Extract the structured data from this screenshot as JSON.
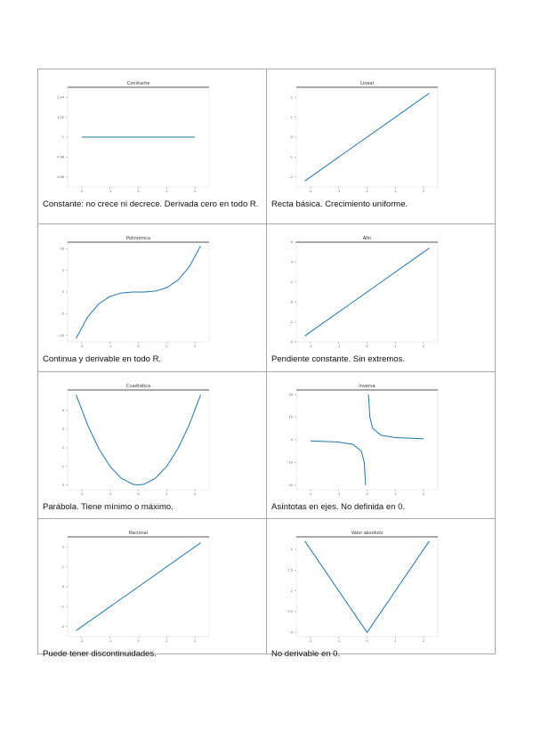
{
  "cells": [
    {
      "chart": {
        "type": "line",
        "title": "Constante",
        "color": "#1f77b4",
        "x": [
          -2,
          2
        ],
        "values": [
          1,
          1
        ],
        "xlim": [
          -2.5,
          2.5
        ],
        "ylim": [
          0.95,
          1.05
        ],
        "xticks": [
          -2,
          -1,
          0,
          1,
          2
        ],
        "yticks": [
          0.96,
          0.98,
          1.0,
          1.02,
          1.04
        ]
      },
      "caption": "Constante: no crece ni decrece. Derivada cero en todo R."
    },
    {
      "chart": {
        "type": "line",
        "title": "Lineal",
        "color": "#1f77b4",
        "x": [
          -2.2,
          2.2
        ],
        "values": [
          -2.2,
          2.2
        ],
        "xlim": [
          -2.5,
          2.5
        ],
        "ylim": [
          -2.5,
          2.5
        ],
        "xticks": [
          -2,
          -1,
          0,
          1,
          2
        ],
        "yticks": [
          -2,
          -1,
          0,
          1,
          2
        ]
      },
      "caption": "Recta básica. Crecimiento uniforme."
    },
    {
      "chart": {
        "type": "line",
        "title": "Polinómica",
        "color": "#1f77b4",
        "x": [
          -2.2,
          -1.8,
          -1.4,
          -1,
          -0.6,
          -0.2,
          0.2,
          0.6,
          1,
          1.4,
          1.8,
          2.2
        ],
        "values": [
          -10.65,
          -5.83,
          -2.74,
          -1,
          -0.22,
          -0.01,
          0.01,
          0.22,
          1,
          2.74,
          5.83,
          10.65
        ],
        "xlim": [
          -2.5,
          2.5
        ],
        "ylim": [
          -11.5,
          11.5
        ],
        "xticks": [
          -2,
          -1,
          0,
          1,
          2
        ],
        "yticks": [
          -10,
          -5,
          0,
          5,
          10
        ]
      },
      "caption": "Continua y derivable en todo R."
    },
    {
      "chart": {
        "type": "line",
        "title": "Afín",
        "color": "#1f77b4",
        "x": [
          -2.2,
          2.2
        ],
        "values": [
          -3.4,
          5.4
        ],
        "xlim": [
          -2.5,
          2.5
        ],
        "ylim": [
          -4,
          6
        ],
        "xticks": [
          -2,
          -1,
          0,
          1,
          2
        ],
        "yticks": [
          -4,
          -2,
          0,
          2,
          4,
          6
        ]
      },
      "caption": "Pendiente constante. Sin extremos."
    },
    {
      "chart": {
        "type": "line",
        "title": "Cuadrática",
        "color": "#1f77b4",
        "x": [
          -2.2,
          -1.8,
          -1.4,
          -1,
          -0.6,
          -0.2,
          0,
          0.2,
          0.6,
          1,
          1.4,
          1.8,
          2.2
        ],
        "values": [
          4.84,
          3.24,
          1.96,
          1,
          0.36,
          0.04,
          0,
          0.04,
          0.36,
          1,
          1.96,
          3.24,
          4.84
        ],
        "xlim": [
          -2.5,
          2.5
        ],
        "ylim": [
          -0.25,
          5.1
        ],
        "xticks": [
          -2,
          -1,
          0,
          1,
          2
        ],
        "yticks": [
          0,
          1,
          2,
          3,
          4
        ]
      },
      "caption": "Parábola. Tiene mínimo o máximo."
    },
    {
      "chart": {
        "type": "line",
        "title": "Inversa",
        "color": "#1f77b4",
        "x": [
          -2,
          -1,
          -0.5,
          -0.2,
          -0.1,
          -0.05,
          0,
          0.05,
          0.1,
          0.2,
          0.5,
          1,
          2
        ],
        "values": [
          -0.5,
          -1,
          -2,
          -5,
          -10,
          -20,
          null,
          20,
          10,
          5,
          2,
          1,
          0.5
        ],
        "xlim": [
          -2.5,
          2.5
        ],
        "ylim": [
          -22,
          22
        ],
        "xticks": [
          -2,
          -1,
          0,
          1,
          2
        ],
        "yticks": [
          -20,
          -10,
          0,
          10,
          20
        ]
      },
      "caption": "Asíntotas en ejes. No definida en 0."
    },
    {
      "chart": {
        "type": "line",
        "title": "Racional",
        "color": "#1f77b4",
        "x": [
          -2.2,
          2.2
        ],
        "values": [
          -2.2,
          2.2
        ],
        "xlim": [
          -2.5,
          2.5
        ],
        "ylim": [
          -2.5,
          2.5
        ],
        "xticks": [
          -2,
          -1,
          0,
          1,
          2
        ],
        "yticks": [
          -2,
          -1,
          0,
          1,
          2
        ]
      },
      "caption": "Puede tener discontinuidades."
    },
    {
      "chart": {
        "type": "line",
        "title": "Valor absoluto",
        "color": "#1f77b4",
        "x": [
          -2.2,
          0,
          2.2
        ],
        "values": [
          2.2,
          0,
          2.2
        ],
        "xlim": [
          -2.5,
          2.5
        ],
        "ylim": [
          -0.1,
          2.3
        ],
        "xticks": [
          -2,
          -1,
          0,
          1,
          2
        ],
        "yticks": [
          0,
          0.5,
          1,
          1.5,
          2
        ]
      },
      "caption": "No derivable en 0."
    }
  ]
}
